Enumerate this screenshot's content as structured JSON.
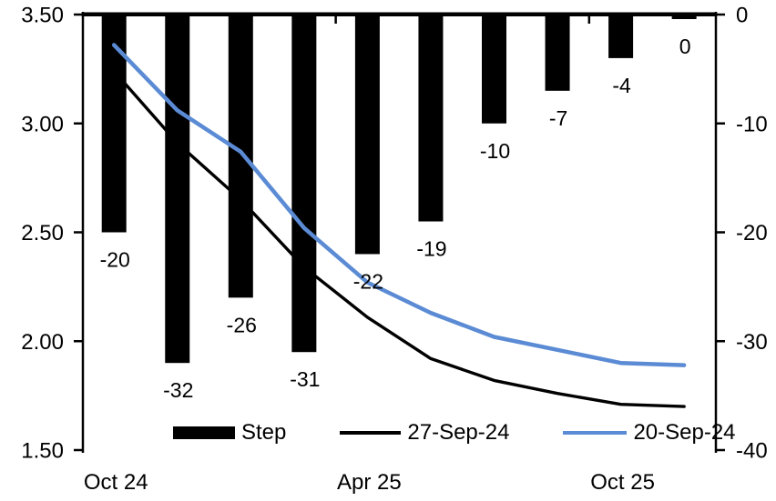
{
  "chart_data": {
    "type": "combo-bar-line",
    "title": "",
    "categories_count": 10,
    "x_labels": [
      "Oct 24",
      "Apr 25",
      "Oct 25"
    ],
    "x_label_indices": [
      0,
      4,
      8
    ],
    "bar_series": {
      "name": "Step",
      "axis": "right",
      "color": "#000000",
      "values": [
        -20,
        -32,
        -26,
        -31,
        -22,
        -19,
        -10,
        -7,
        -4,
        0
      ],
      "labels": [
        "-20",
        "-32",
        "-26",
        "-31",
        "-22",
        "-19",
        "-10",
        "-7",
        "-4",
        "0"
      ]
    },
    "line_series": [
      {
        "name": "27-Sep-24",
        "axis": "left",
        "color": "#000000",
        "values": [
          3.24,
          2.91,
          2.65,
          2.34,
          2.11,
          1.92,
          1.82,
          1.76,
          1.71,
          1.7
        ]
      },
      {
        "name": "20-Sep-24",
        "axis": "left",
        "color": "#5B8BD4",
        "values": [
          3.36,
          3.06,
          2.87,
          2.52,
          2.27,
          2.13,
          2.02,
          1.96,
          1.9,
          1.89
        ]
      }
    ],
    "left_axis": {
      "ticks": [
        "3.50",
        "3.00",
        "2.50",
        "2.00",
        "1.50"
      ],
      "min": 1.5,
      "max": 3.5
    },
    "right_axis": {
      "ticks": [
        "0",
        "-10",
        "-20",
        "-30",
        "-40"
      ],
      "min": -40,
      "max": 0
    },
    "legend": [
      {
        "label": "Step",
        "swatch": "bar",
        "color": "#000000"
      },
      {
        "label": "27-Sep-24",
        "swatch": "line",
        "color": "#000000"
      },
      {
        "label": "20-Sep-24",
        "swatch": "line",
        "color": "#5B8BD4"
      }
    ],
    "grid": "off",
    "legend_position": "bottom-center"
  }
}
